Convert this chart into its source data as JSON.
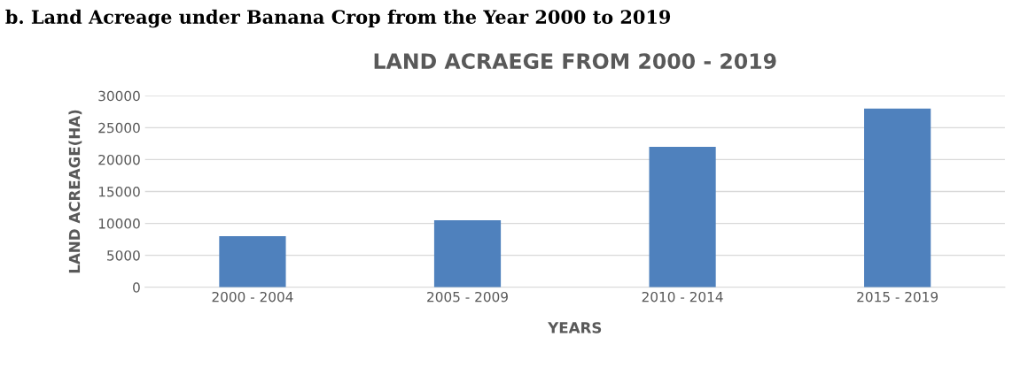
{
  "chart_data": {
    "type": "bar",
    "title": "LAND ACRAEGE FROM 2000 - 2019",
    "annotations": [
      "b. Land Acreage under Banana Crop from the Year 2000 to 2019"
    ],
    "xlabel": "YEARS",
    "ylabel": "LAND ACREAGE(HA)",
    "categories": [
      "2000 - 2004",
      "2005 - 2009",
      "2010 - 2014",
      "2015 - 2019"
    ],
    "values": [
      8000,
      10500,
      22000,
      28000
    ],
    "color": "#4f81bd",
    "ylim": [
      0,
      30000
    ],
    "yticks": [
      0,
      5000,
      10000,
      15000,
      20000,
      25000,
      30000
    ],
    "grid": "y"
  }
}
